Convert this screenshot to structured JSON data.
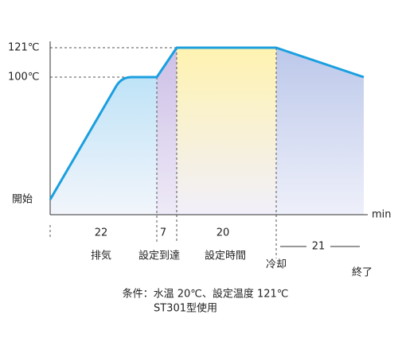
{
  "y_labels": [
    "121℃",
    "100℃"
  ],
  "start_label": "開始",
  "x_unit": "min",
  "phases": [
    {
      "duration": 22,
      "label": "排気"
    },
    {
      "duration": 7,
      "label": "設定到達"
    },
    {
      "duration": 20,
      "label": "設定時間"
    },
    {
      "duration": 21,
      "label": "冷却"
    }
  ],
  "end_label": "終了",
  "notes": [
    "条件：水温 20℃、設定温度 121℃",
    "ST301型使用"
  ]
}
